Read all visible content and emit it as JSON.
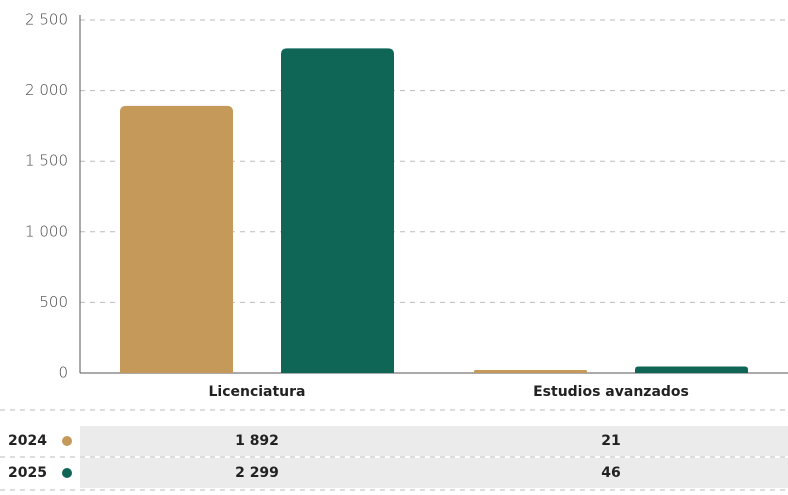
{
  "chart_data": {
    "type": "bar",
    "categories": [
      "Licenciatura",
      "Estudios avanzados"
    ],
    "series": [
      {
        "name": "2024",
        "color": "#c4995a",
        "values": [
          1892,
          21
        ],
        "value_labels": [
          "1 892",
          "21"
        ]
      },
      {
        "name": "2025",
        "color": "#0f6657",
        "values": [
          2299,
          46
        ],
        "value_labels": [
          "2 299",
          "46"
        ]
      }
    ],
    "ylim": [
      0,
      2500
    ],
    "yticks": [
      {
        "value": 0,
        "label": "0"
      },
      {
        "value": 500,
        "label": "500"
      },
      {
        "value": 1000,
        "label": "1 000"
      },
      {
        "value": 1500,
        "label": "1 500"
      },
      {
        "value": 2000,
        "label": "2 000"
      },
      {
        "value": 2500,
        "label": "2 500"
      }
    ],
    "grid": true
  }
}
